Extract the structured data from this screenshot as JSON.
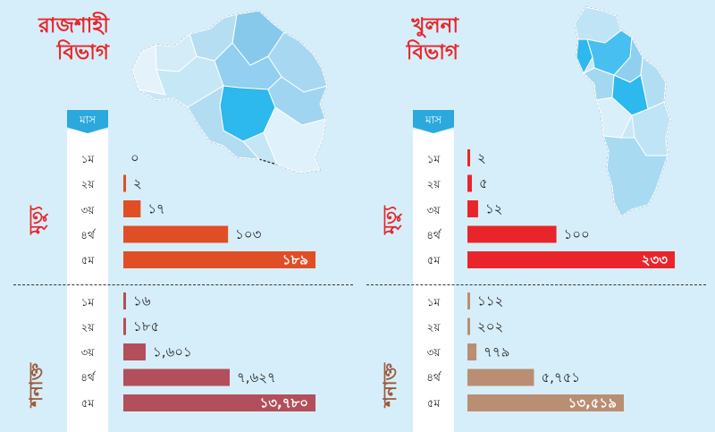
{
  "panels": [
    {
      "title_line1": "রাজশাহী",
      "title_line2": "বিভাগ",
      "month_header": "মাস",
      "months": [
        "১ম",
        "২য়",
        "৩য়",
        "৪র্থ",
        "৫ম"
      ],
      "groups": [
        {
          "label": "মৃত্যু"
        },
        {
          "label": "শনাক্ত"
        }
      ]
    },
    {
      "title_line1": "খুলনা",
      "title_line2": "বিভাগ",
      "month_header": "মাস",
      "months": [
        "১ম",
        "২য়",
        "৩য়",
        "৪র্থ",
        "৫ম"
      ],
      "groups": [
        {
          "label": "মৃত্যু"
        },
        {
          "label": "শনাক্ত"
        }
      ]
    }
  ],
  "chart_data": [
    {
      "type": "bar",
      "division": "রাজশাহী বিভাগ",
      "group": "মৃত্যু",
      "categories": [
        "১ম",
        "২য়",
        "৩য়",
        "৪র্থ",
        "৫ম"
      ],
      "values": [
        0,
        2,
        17,
        103,
        189
      ],
      "labels": [
        "০",
        "২",
        "১৭",
        "১০৩",
        "১৮৯"
      ],
      "color": "#e04e25"
    },
    {
      "type": "bar",
      "division": "রাজশাহী বিভাগ",
      "group": "শনাক্ত",
      "categories": [
        "১ম",
        "২য়",
        "৩য়",
        "৪র্থ",
        "৫ম"
      ],
      "values": [
        16,
        185,
        1601,
        7627,
        13780
      ],
      "labels": [
        "১৬",
        "১৮৫",
        "১,৬০১",
        "৭,৬২৭",
        "১৩,৭৮০"
      ],
      "color": "#b24f5a"
    },
    {
      "type": "bar",
      "division": "খুলনা বিভাগ",
      "group": "মৃত্যু",
      "categories": [
        "১ম",
        "২য়",
        "৩য়",
        "৪র্থ",
        "৫ম"
      ],
      "values": [
        2,
        5,
        12,
        100,
        233
      ],
      "labels": [
        "২",
        "৫",
        "১২",
        "১০০",
        "২৩৩"
      ],
      "color": "#e9252b"
    },
    {
      "type": "bar",
      "division": "খুলনা বিভাগ",
      "group": "শনাক্ত",
      "categories": [
        "১ম",
        "২য়",
        "৩য়",
        "৪র্থ",
        "৫ম"
      ],
      "values": [
        112,
        202,
        779,
        5751,
        13519
      ],
      "labels": [
        "১১২",
        "২০২",
        "৭৭৯",
        "৫,৭৫১",
        "১৩,৫১৯"
      ],
      "color": "#b98e72"
    }
  ]
}
